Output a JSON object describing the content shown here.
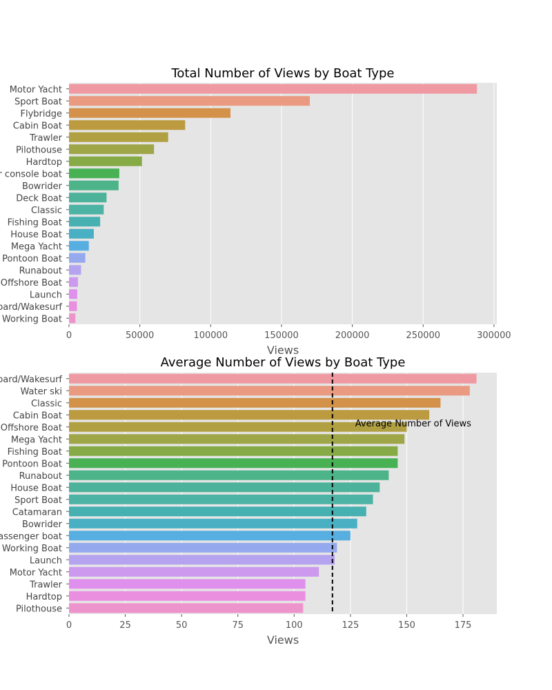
{
  "chart_data": [
    {
      "type": "bar",
      "orientation": "horizontal",
      "title": "Total Number of Views by Boat Type",
      "xlabel": "Views",
      "ylabel": "",
      "xlim": [
        0,
        302000
      ],
      "xticks": [
        0,
        50000,
        100000,
        150000,
        200000,
        250000,
        300000
      ],
      "grid": true,
      "categories": [
        "Motor Yacht",
        "Sport Boat",
        "Flybridge",
        "Cabin Boat",
        "Trawler",
        "Pilothouse",
        "Hardtop",
        "Center console boat",
        "Bowrider",
        "Deck Boat",
        "Classic",
        "Fishing Boat",
        "House Boat",
        "Mega Yacht",
        "Pontoon Boat",
        "Runabout",
        "Offshore Boat",
        "Launch",
        "Wakeboard/Wakesurf",
        "Working Boat"
      ],
      "values": [
        288000,
        170000,
        114000,
        82000,
        70000,
        60000,
        51500,
        35500,
        35000,
        26500,
        24500,
        22000,
        17500,
        14000,
        11500,
        8500,
        6300,
        5800,
        5600,
        4500
      ],
      "colors": [
        "#ef9aa2",
        "#e99a80",
        "#d3914a",
        "#bb9a40",
        "#b0a042",
        "#9ea648",
        "#86ab46",
        "#47b154",
        "#4db48a",
        "#4db29a",
        "#4db3a5",
        "#47b0b1",
        "#48b0c2",
        "#57aee0",
        "#95a9ee",
        "#b5a3ef",
        "#cc99ee",
        "#df90ec",
        "#ea8fe0",
        "#ee94cc"
      ]
    },
    {
      "type": "bar",
      "orientation": "horizontal",
      "title": "Average Number of Views by Boat Type",
      "xlabel": "Views",
      "ylabel": "",
      "xlim": [
        0,
        190
      ],
      "xticks": [
        0,
        25,
        50,
        75,
        100,
        125,
        150,
        175
      ],
      "grid": true,
      "categories": [
        "Wakeboard/Wakesurf",
        "Water ski",
        "Classic",
        "Cabin Boat",
        "Offshore Boat",
        "Mega Yacht",
        "Fishing Boat",
        "Pontoon Boat",
        "Runabout",
        "House Boat",
        "Sport Boat",
        "Catamaran",
        "Bowrider",
        "Passenger boat",
        "Working Boat",
        "Launch",
        "Motor Yacht",
        "Trawler",
        "Hardtop",
        "Pilothouse"
      ],
      "values": [
        181,
        178,
        165,
        160,
        150,
        149,
        146,
        146,
        142,
        138,
        135,
        132,
        128,
        125,
        119,
        118,
        111,
        105,
        105,
        104
      ],
      "colors": [
        "#ef9aa2",
        "#e99a80",
        "#d3914a",
        "#bb9a40",
        "#b0a042",
        "#9ea648",
        "#86ab46",
        "#47b154",
        "#4db48a",
        "#4db29a",
        "#4db3a5",
        "#47b0b1",
        "#48b0c2",
        "#57aee0",
        "#95a9ee",
        "#b5a3ef",
        "#cc99ee",
        "#df90ec",
        "#ea8fe0",
        "#ee94cc"
      ],
      "reference_line": {
        "value": 117,
        "style": "dashed",
        "color": "#000000",
        "label": "Average Number of Views"
      }
    }
  ]
}
